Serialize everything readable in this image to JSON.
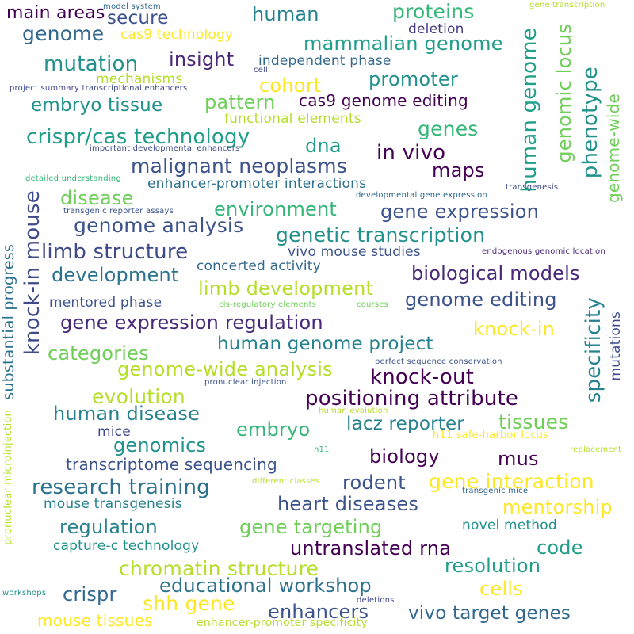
{
  "words": [
    {
      "text": "main areas",
      "color": "#440154"
    },
    {
      "text": "model system",
      "color": "#31688e"
    },
    {
      "text": "secure",
      "color": "#3b528b"
    },
    {
      "text": "human",
      "color": "#26828e"
    },
    {
      "text": "proteins",
      "color": "#35b779"
    },
    {
      "text": "gene transcription",
      "color": "#b5de2b"
    },
    {
      "text": "genome",
      "color": "#31688e"
    },
    {
      "text": "cas9 technology",
      "color": "#fde725"
    },
    {
      "text": "deletion",
      "color": "#443983"
    },
    {
      "text": "mammalian genome",
      "color": "#1f9e89"
    },
    {
      "text": "mutation",
      "color": "#21918c"
    },
    {
      "text": "insight",
      "color": "#482878"
    },
    {
      "text": "independent phase",
      "color": "#31688e"
    },
    {
      "text": "cell",
      "color": "#3e4a89"
    },
    {
      "text": "mechanisms",
      "color": "#b5de2b"
    },
    {
      "text": "promoter",
      "color": "#21918c"
    },
    {
      "text": "project summary transcriptional enhancers",
      "color": "#3e4a89"
    },
    {
      "text": "cohort",
      "color": "#fde725"
    },
    {
      "text": "embryo tissue",
      "color": "#21918c"
    },
    {
      "text": "pattern",
      "color": "#6ece58"
    },
    {
      "text": "cas9 genome editing",
      "color": "#440154"
    },
    {
      "text": "functional elements",
      "color": "#b5de2b"
    },
    {
      "text": "genes",
      "color": "#35b779"
    },
    {
      "text": "crispr/cas technology",
      "color": "#1f9e89"
    },
    {
      "text": "dna",
      "color": "#1f9e89"
    },
    {
      "text": "in vivo",
      "color": "#440154"
    },
    {
      "text": "important developmental enhancers",
      "color": "#3e4a89"
    },
    {
      "text": "malignant neoplasms",
      "color": "#3b528b"
    },
    {
      "text": "maps",
      "color": "#440154"
    },
    {
      "text": "enhancer-promoter interactions",
      "color": "#2c728e"
    },
    {
      "text": "detailed understanding",
      "color": "#35b779"
    },
    {
      "text": "disease",
      "color": "#6ece58"
    },
    {
      "text": "developmental gene expression",
      "color": "#31688e"
    },
    {
      "text": "transgenesis",
      "color": "#3e4a89"
    },
    {
      "text": "environment",
      "color": "#35b779"
    },
    {
      "text": "gene expression",
      "color": "#3b528b"
    },
    {
      "text": "transgenic reporter assays",
      "color": "#3b528b"
    },
    {
      "text": "genome analysis",
      "color": "#3b528b"
    },
    {
      "text": "genetic transcription",
      "color": "#21918c"
    },
    {
      "text": "limb structure",
      "color": "#3e4a89"
    },
    {
      "text": "vivo mouse studies",
      "color": "#3b528b"
    },
    {
      "text": "endogenous genomic location",
      "color": "#482878"
    },
    {
      "text": "concerted activity",
      "color": "#31688e"
    },
    {
      "text": "development",
      "color": "#2c728e"
    },
    {
      "text": "limb development",
      "color": "#b5de2b"
    },
    {
      "text": "biological models",
      "color": "#482878"
    },
    {
      "text": "mentored phase",
      "color": "#3b528b"
    },
    {
      "text": "cis-regulatory elements",
      "color": "#6ece58"
    },
    {
      "text": "courses",
      "color": "#6ece58"
    },
    {
      "text": "genome editing",
      "color": "#3b528b"
    },
    {
      "text": "gene expression regulation",
      "color": "#482878"
    },
    {
      "text": "knock-in",
      "color": "#fde725"
    },
    {
      "text": "categories",
      "color": "#6ece58"
    },
    {
      "text": "human genome project",
      "color": "#26828e"
    },
    {
      "text": "genome-wide analysis",
      "color": "#b5de2b"
    },
    {
      "text": "perfect sequence conservation",
      "color": "#3b528b"
    },
    {
      "text": "knock-out",
      "color": "#440154"
    },
    {
      "text": "pronuclear injection",
      "color": "#3b528b"
    },
    {
      "text": "evolution",
      "color": "#b5de2b"
    },
    {
      "text": "positioning attribute",
      "color": "#440154"
    },
    {
      "text": "human evolution",
      "color": "#b5de2b"
    },
    {
      "text": "human disease",
      "color": "#26828e"
    },
    {
      "text": "lacz reporter",
      "color": "#26828e"
    },
    {
      "text": "tissues",
      "color": "#6ece58"
    },
    {
      "text": "mice",
      "color": "#3e4a89"
    },
    {
      "text": "embryo",
      "color": "#35b779"
    },
    {
      "text": "h11 safe-harbor locus",
      "color": "#fde725"
    },
    {
      "text": "genomics",
      "color": "#21918c"
    },
    {
      "text": "h11",
      "color": "#35b779"
    },
    {
      "text": "replacement",
      "color": "#b5de2b"
    },
    {
      "text": "transcriptome sequencing",
      "color": "#3b528b"
    },
    {
      "text": "biology",
      "color": "#440154"
    },
    {
      "text": "mus",
      "color": "#440154"
    },
    {
      "text": "research training",
      "color": "#2c728e"
    },
    {
      "text": "rodent",
      "color": "#3b528b"
    },
    {
      "text": "gene interaction",
      "color": "#fde725"
    },
    {
      "text": "different classes",
      "color": "#b5de2b"
    },
    {
      "text": "transgenic mice",
      "color": "#31688e"
    },
    {
      "text": "mouse transgenesis",
      "color": "#26828e"
    },
    {
      "text": "heart diseases",
      "color": "#3b528b"
    },
    {
      "text": "mentorship",
      "color": "#fde725"
    },
    {
      "text": "regulation",
      "color": "#26828e"
    },
    {
      "text": "gene targeting",
      "color": "#6ece58"
    },
    {
      "text": "novel method",
      "color": "#21918c"
    },
    {
      "text": "capture-c technology",
      "color": "#21918c"
    },
    {
      "text": "untranslated rna",
      "color": "#440154"
    },
    {
      "text": "code",
      "color": "#1f9e89"
    },
    {
      "text": "chromatin structure",
      "color": "#b5de2b"
    },
    {
      "text": "resolution",
      "color": "#1f9e89"
    },
    {
      "text": "educational workshop",
      "color": "#2c728e"
    },
    {
      "text": "crispr",
      "color": "#31688e"
    },
    {
      "text": "cells",
      "color": "#fde725"
    },
    {
      "text": "shh gene",
      "color": "#fde725"
    },
    {
      "text": "workshops",
      "color": "#21918c"
    },
    {
      "text": "deletions",
      "color": "#3e4a89"
    },
    {
      "text": "enhancers",
      "color": "#3b528b"
    },
    {
      "text": "vivo target genes",
      "color": "#31688e"
    },
    {
      "text": "mouse tissues",
      "color": "#fde725"
    },
    {
      "text": "enhancer-promoter specificity",
      "color": "#b5de2b"
    },
    {
      "text": "knock-in mouse",
      "color": "#3e4a89"
    },
    {
      "text": "substantial progress",
      "color": "#2c728e"
    },
    {
      "text": "pronuclear microinjection",
      "color": "#b5de2b"
    },
    {
      "text": "human genome",
      "color": "#1f9e89"
    },
    {
      "text": "genomic locus",
      "color": "#6ece58"
    },
    {
      "text": "phenotype",
      "color": "#21918c"
    },
    {
      "text": "genome-wide",
      "color": "#6ece58"
    },
    {
      "text": "specificity",
      "color": "#26828e"
    },
    {
      "text": "mutations",
      "color": "#3e4a89"
    }
  ]
}
